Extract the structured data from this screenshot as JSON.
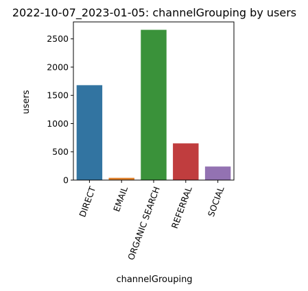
{
  "chart_data": {
    "type": "bar",
    "title": "2022-10-07_2023-01-05: channelGrouping by users",
    "xlabel": "channelGrouping",
    "ylabel": "users",
    "categories": [
      "DIRECT",
      "EMAIL",
      "ORGANIC SEARCH",
      "REFERRAL",
      "SOCIAL"
    ],
    "values": [
      1680,
      40,
      2660,
      650,
      240
    ],
    "colors": [
      "#3274a1",
      "#e1812c",
      "#3a923a",
      "#c03d3e",
      "#9372b2"
    ],
    "ylim": [
      0,
      2800
    ],
    "yticks": [
      0,
      500,
      1000,
      1500,
      2000,
      2500
    ],
    "grid": false,
    "legend": "none"
  }
}
